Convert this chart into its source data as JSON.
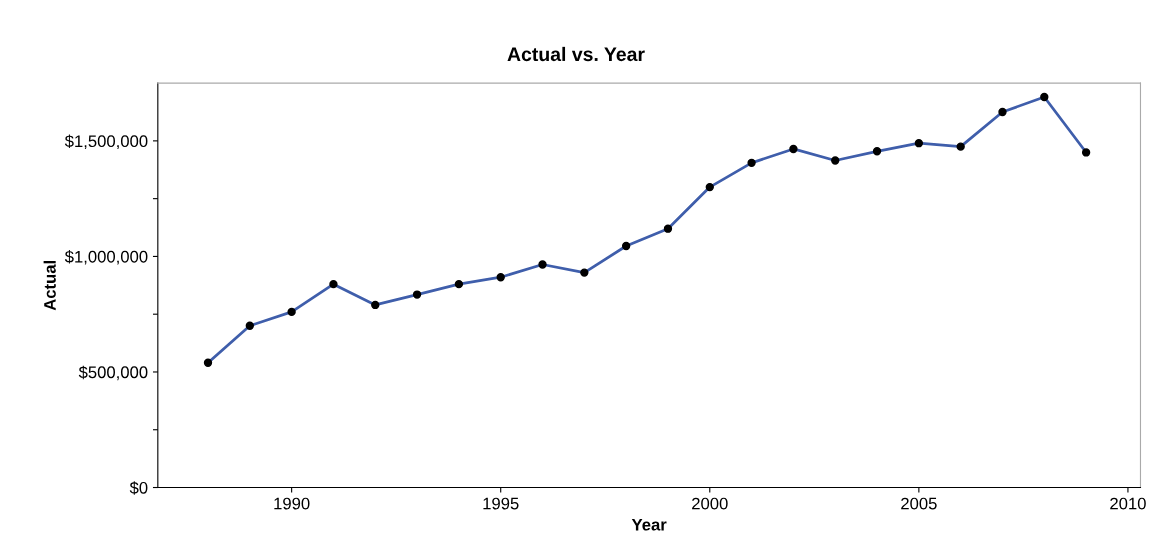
{
  "chart_data": {
    "type": "line",
    "title": "Actual vs. Year",
    "xlabel": "Year",
    "ylabel": "Actual",
    "x": [
      1988,
      1989,
      1990,
      1991,
      1992,
      1993,
      1994,
      1995,
      1996,
      1997,
      1998,
      1999,
      2000,
      2001,
      2002,
      2003,
      2004,
      2005,
      2006,
      2007,
      2008,
      2009
    ],
    "series": [
      {
        "color": "#3f5eab",
        "values": [
          540000,
          700000,
          760000,
          880000,
          790000,
          835000,
          880000,
          910000,
          965000,
          930000,
          1045000,
          1120000,
          1300000,
          1405000,
          1465000,
          1415000,
          1455000,
          1490000,
          1475000,
          1625000,
          1690000,
          1450000
        ]
      }
    ],
    "xlim": [
      1986.8,
      2010.3
    ],
    "xticks": [
      1990,
      1995,
      2000,
      2005,
      2010
    ],
    "ylim": [
      0,
      1750000
    ],
    "yticks": [
      {
        "value": 0,
        "label": "$0"
      },
      {
        "value": 250000,
        "label": null
      },
      {
        "value": 500000,
        "label": "$500,000"
      },
      {
        "value": 750000,
        "label": null
      },
      {
        "value": 1000000,
        "label": "$1,000,000"
      },
      {
        "value": 1250000,
        "label": null
      },
      {
        "value": 1500000,
        "label": "$1,500,000"
      }
    ],
    "marker": "circle",
    "line_style": "solid",
    "grid": false,
    "legend": false
  }
}
